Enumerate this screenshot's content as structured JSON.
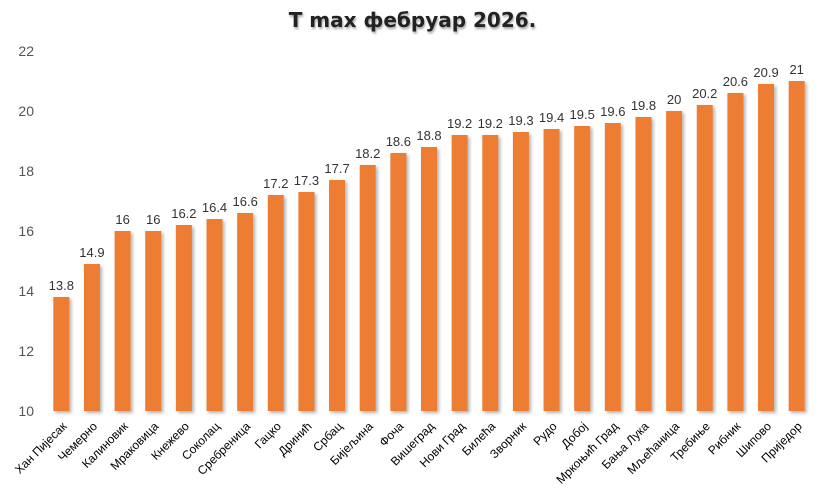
{
  "chart_data": {
    "type": "bar",
    "title": "T max фебруар 2026.",
    "xlabel": "",
    "ylabel": "",
    "ylim": [
      10,
      22
    ],
    "yticks": [
      10,
      12,
      14,
      16,
      18,
      20,
      22
    ],
    "grid": false,
    "legend": "none",
    "bar_color": "#ED7D31",
    "categories": [
      "Хан Пијесак",
      "Чемерно",
      "Калиновик",
      "Мраковица",
      "Кнежево",
      "Соколац",
      "Сребреница",
      "Гацко",
      "Дринић",
      "Србац",
      "Бијељина",
      "Фоча",
      "Вишеград",
      "Нови Град",
      "Билећа",
      "Зворник",
      "Рудо",
      "Добој",
      "Мркоњић Град",
      "Бања Лука",
      "Мљећаница",
      "Требиње",
      "Рибник",
      "Шипово",
      "Приједор"
    ],
    "values": [
      13.8,
      14.9,
      16,
      16,
      16.2,
      16.4,
      16.6,
      17.2,
      17.3,
      17.7,
      18.2,
      18.6,
      18.8,
      19.2,
      19.2,
      19.3,
      19.4,
      19.5,
      19.6,
      19.8,
      20,
      20.2,
      20.6,
      20.9,
      21
    ]
  }
}
